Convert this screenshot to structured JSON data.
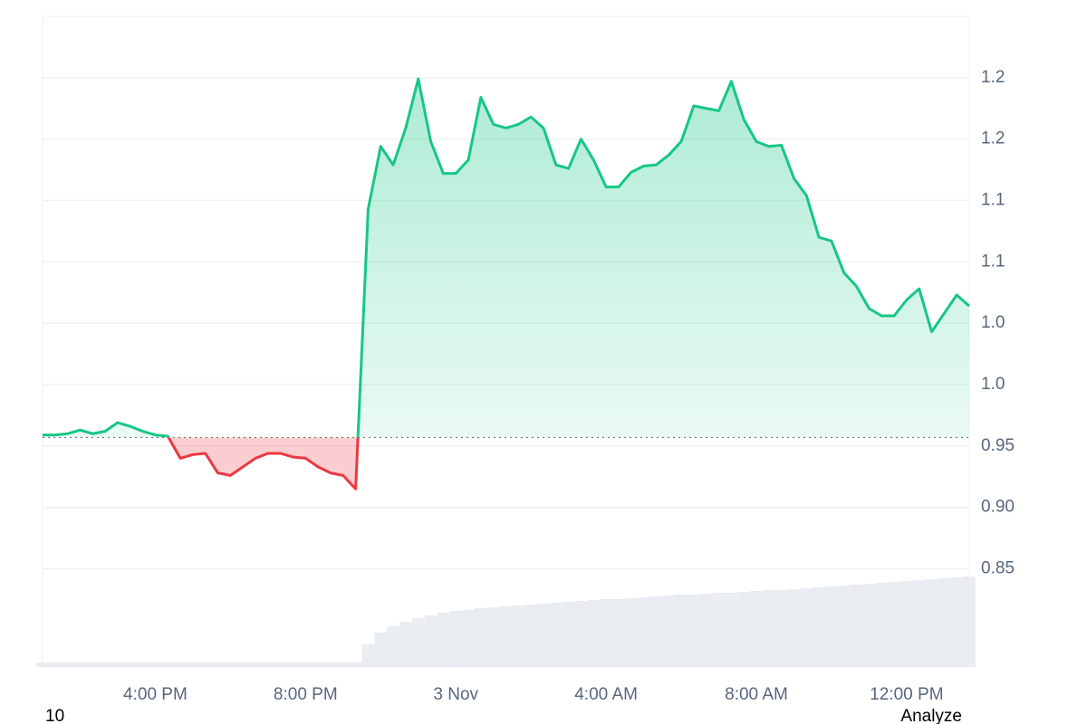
{
  "chart_data": {
    "type": "line",
    "categories": [
      null,
      null,
      null,
      null,
      null,
      null,
      null,
      null,
      null,
      "4:00 PM",
      null,
      null,
      null,
      null,
      null,
      null,
      null,
      null,
      null,
      null,
      null,
      "8:00 PM",
      null,
      null,
      null,
      null,
      null,
      null,
      null,
      null,
      null,
      null,
      null,
      "3 Nov",
      null,
      null,
      null,
      null,
      null,
      null,
      null,
      null,
      null,
      null,
      null,
      "4:00 AM",
      null,
      null,
      null,
      null,
      null,
      null,
      null,
      null,
      null,
      null,
      null,
      "8:00 AM",
      null,
      null,
      null,
      null,
      null,
      null,
      null,
      null,
      null,
      null,
      null,
      "12:00 PM",
      null,
      null,
      null,
      null,
      null
    ],
    "values": [
      0.959,
      0.959,
      0.96,
      0.963,
      0.96,
      0.962,
      0.969,
      0.966,
      0.962,
      0.959,
      0.958,
      0.94,
      0.943,
      0.944,
      0.928,
      0.926,
      0.933,
      0.94,
      0.944,
      0.944,
      0.941,
      0.94,
      0.933,
      0.928,
      0.926,
      0.915,
      1.143,
      1.194,
      1.179,
      1.209,
      1.249,
      1.198,
      1.172,
      1.172,
      1.183,
      1.234,
      1.212,
      1.209,
      1.212,
      1.218,
      1.209,
      1.179,
      1.176,
      1.2,
      1.183,
      1.161,
      1.161,
      1.173,
      1.178,
      1.179,
      1.187,
      1.198,
      1.227,
      1.225,
      1.223,
      1.247,
      1.216,
      1.198,
      1.194,
      1.195,
      1.168,
      1.154,
      1.12,
      1.117,
      1.091,
      1.08,
      1.062,
      1.056,
      1.056,
      1.069,
      1.078,
      1.043,
      1.058,
      1.073,
      1.064
    ],
    "baseline": 0.957,
    "up_color": "#16c784",
    "down_color": "#ea3943",
    "ylim": [
      0.77,
      1.3
    ],
    "yticks": [
      0.85,
      {
        "value": 0.9,
        "label": "0.90"
      },
      0.95,
      {
        "value": 1.0,
        "label": "1.0"
      },
      {
        "value": 1.05,
        "label": "1.0"
      },
      {
        "value": 1.1,
        "label": "1.1"
      },
      {
        "value": 1.15,
        "label": "1.1"
      },
      {
        "value": 1.2,
        "label": "1.2"
      },
      {
        "value": 1.25,
        "label": "1.2"
      }
    ],
    "grid": true,
    "volume": {
      "color": "#e9edf2",
      "ylim": [
        0,
        100
      ],
      "values": [
        5,
        5,
        5,
        5,
        5,
        5,
        5,
        5,
        5,
        5,
        5,
        5,
        5,
        5,
        5,
        5,
        5,
        5,
        5,
        5,
        5,
        5,
        5,
        5,
        5,
        5,
        25,
        38,
        45,
        50,
        54,
        57,
        60,
        62,
        63,
        65,
        66,
        67,
        68,
        69,
        70,
        71,
        72,
        73,
        74,
        75,
        75,
        76,
        77,
        78,
        79,
        80,
        80,
        81,
        82,
        82,
        83,
        84,
        85,
        85,
        86,
        87,
        88,
        89,
        90,
        91,
        92,
        93,
        94,
        95,
        96,
        97,
        98,
        99,
        100
      ]
    }
  },
  "footer": {
    "left": "10",
    "right": "Analyze"
  }
}
